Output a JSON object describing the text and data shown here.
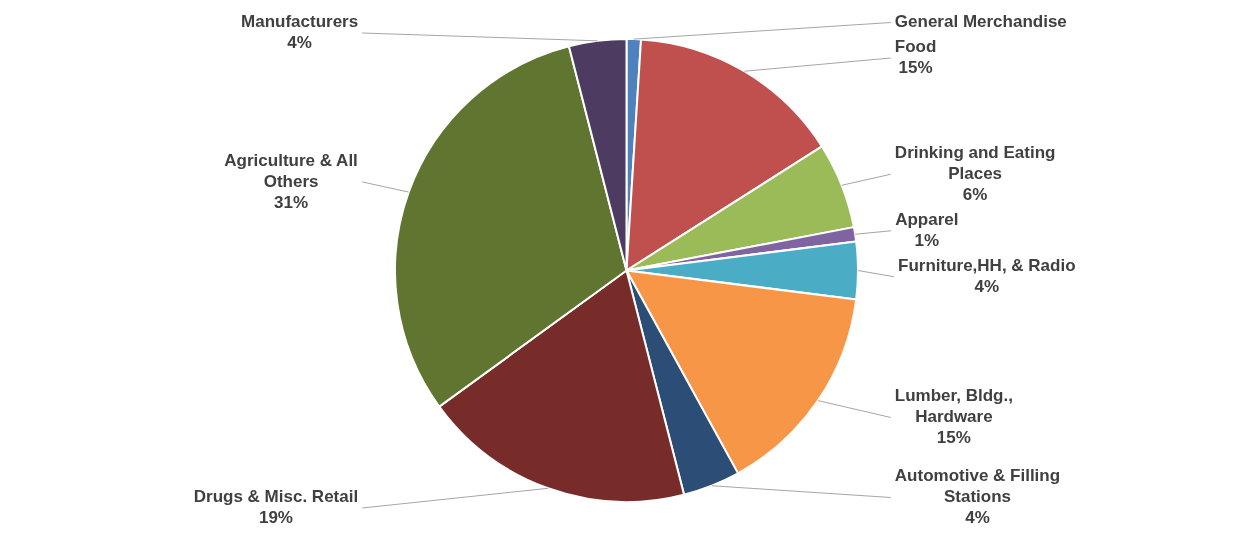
{
  "chart_data": {
    "type": "pie",
    "categories": [
      "General Merchandise",
      "Food",
      "Drinking and Eating Places",
      "Apparel",
      "Furniture,HH, & Radio",
      "Lumber, Bldg., Hardware",
      "Automotive & Filling Stations",
      "Drugs & Misc. Retail",
      "Agriculture & All Others",
      "Manufacturers"
    ],
    "values": [
      1,
      15,
      6,
      1,
      4,
      15,
      4,
      19,
      31,
      4
    ],
    "value_labels": [
      null,
      "15%",
      "6%",
      "1%",
      "4%",
      "15%",
      "4%",
      "19%",
      "31%",
      "4%"
    ],
    "colors": [
      "#4f81bd",
      "#c0504d",
      "#9bbb59",
      "#8064a2",
      "#4bacc6",
      "#f79646",
      "#2c4d75",
      "#772c2a",
      "#5f7530",
      "#4d3b62"
    ],
    "legend": false
  }
}
